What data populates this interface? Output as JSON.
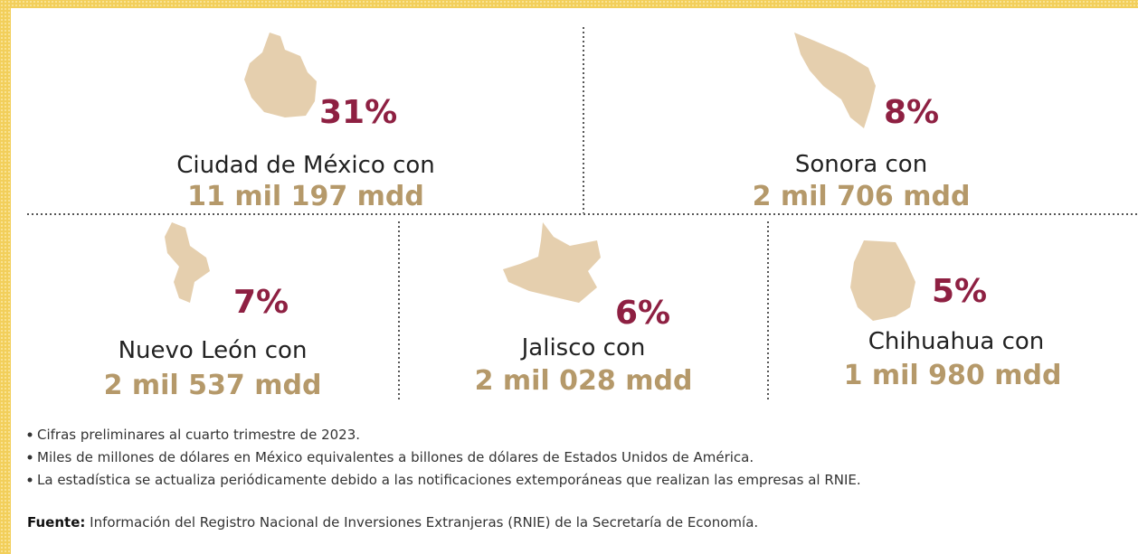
{
  "states": [
    {
      "percent": "31%",
      "name": "Ciudad de México con",
      "amount": "11 mil 197 mdd"
    },
    {
      "percent": "8%",
      "name": "Sonora con",
      "amount": "2 mil 706 mdd"
    },
    {
      "percent": "7%",
      "name": "Nuevo León con",
      "amount": "2 mil 537 mdd"
    },
    {
      "percent": "6%",
      "name": "Jalisco con",
      "amount": "2 mil 028 mdd"
    },
    {
      "percent": "5%",
      "name": "Chihuahua con",
      "amount": "1 mil 980 mdd"
    }
  ],
  "notes": [
    "Cifras preliminares al cuarto trimestre de 2023.",
    "Miles de millones de dólares en México equivalentes a billones de dólares de Estados Unidos de América.",
    "La estadística se actualiza periódicamente debido a las notificaciones extemporáneas que realizan las empresas al RNIE."
  ],
  "source": {
    "label": "Fuente:",
    "text": " Información del Registro Nacional de Inversiones Extranjeras (RNIE) de la Secretaría de Economía."
  }
}
